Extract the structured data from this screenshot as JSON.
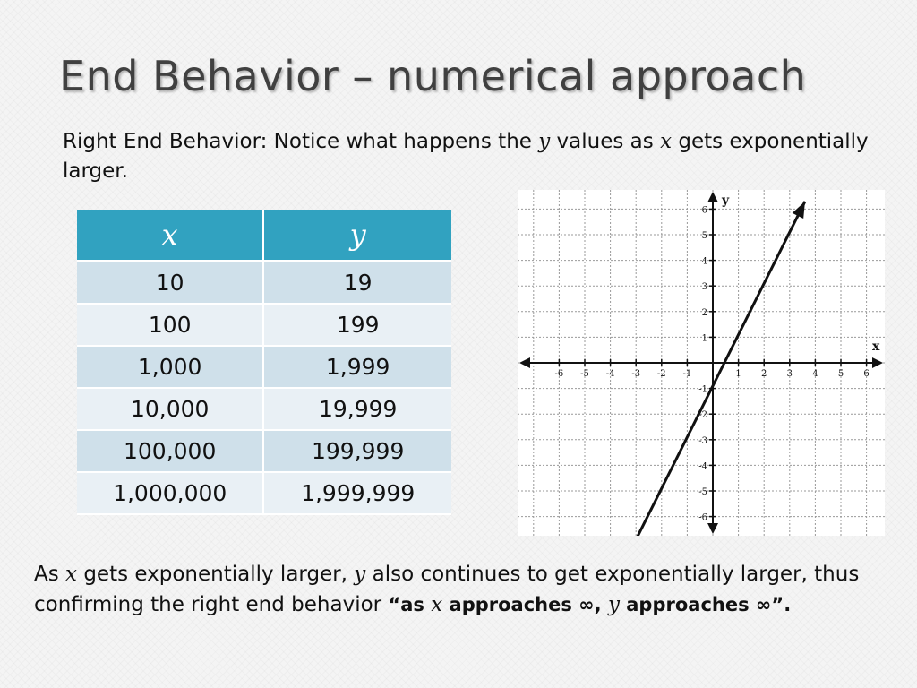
{
  "slide": {
    "title": "End Behavior – numerical approach"
  },
  "intro": {
    "part1": "Right End Behavior: Notice what happens the ",
    "var_y": "y",
    "part2": " values as ",
    "var_x": "x",
    "part3": " gets exponentially larger."
  },
  "table": {
    "headers": [
      "x",
      "y"
    ],
    "rows": [
      [
        "10",
        "19"
      ],
      [
        "100",
        "199"
      ],
      [
        "1,000",
        "1,999"
      ],
      [
        "10,000",
        "19,999"
      ],
      [
        "100,000",
        "199,999"
      ],
      [
        "1,000,000",
        "1,999,999"
      ]
    ]
  },
  "conclusion": {
    "part1": "As ",
    "var_x": "x",
    "part2": " gets exponentially larger, ",
    "var_y": "y",
    "part3": " also continues to get exponentially larger, thus confirming the right end behavior ",
    "quote_part1": "“as ",
    "quote_var_x": "x",
    "quote_part2": " approaches ∞, ",
    "quote_var_y": "y",
    "quote_part3": " approaches ∞”."
  },
  "chart_data": {
    "type": "line",
    "title": "",
    "xlabel": "x",
    "ylabel": "y",
    "xlim": [
      -6,
      6
    ],
    "ylim": [
      -6,
      6
    ],
    "x_ticks": [
      -6,
      -5,
      -4,
      -3,
      -2,
      -1,
      1,
      2,
      3,
      4,
      5,
      6
    ],
    "y_ticks": [
      -6,
      -5,
      -4,
      -3,
      -2,
      -1,
      1,
      2,
      3,
      4,
      5,
      6
    ],
    "grid": true,
    "series": [
      {
        "x": [
          -3.4,
          3.6
        ],
        "y": [
          -7.7,
          6.3
        ]
      }
    ],
    "colors": {
      "line": "#111111",
      "grid": "#999999",
      "axes": "#111111"
    }
  }
}
